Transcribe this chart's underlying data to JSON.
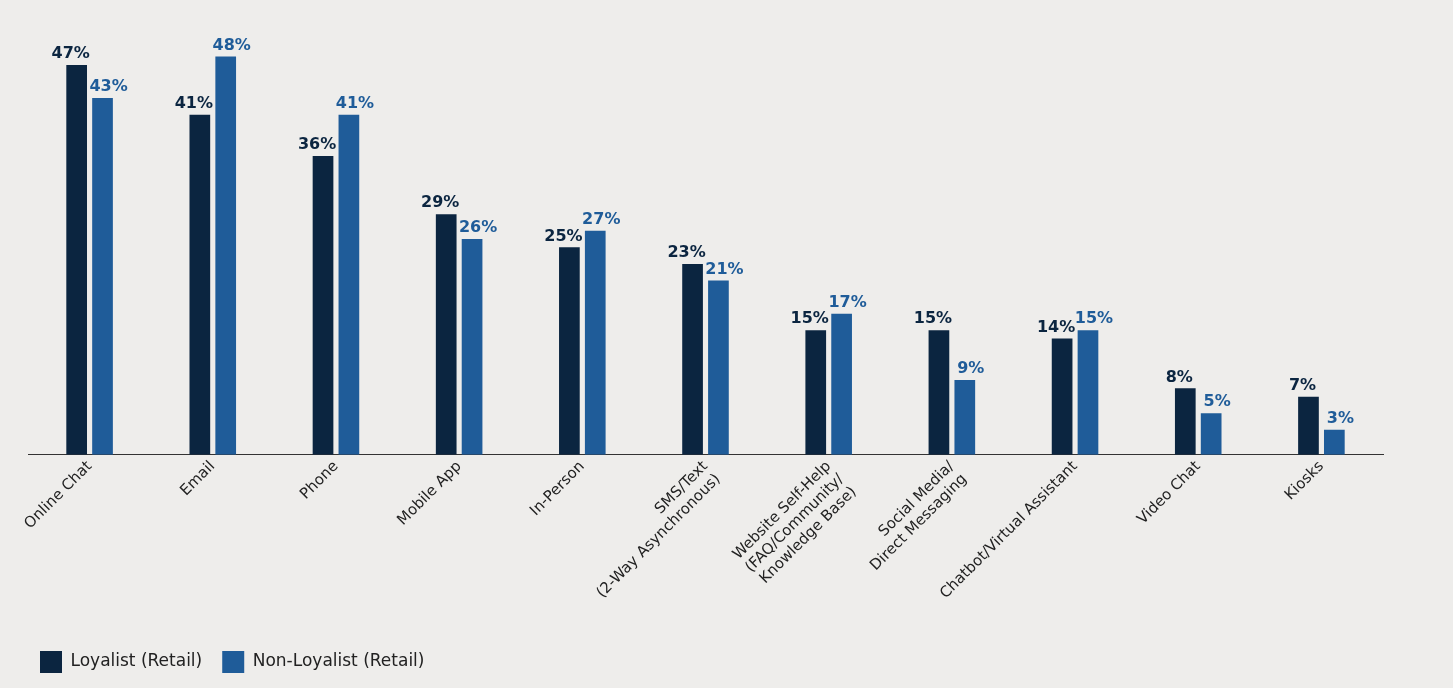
{
  "chart_data": {
    "type": "bar",
    "categories": [
      "Online Chat",
      "Email",
      "Phone",
      "Mobile App",
      "In-Person",
      "SMS/Text\n(2-Way Asynchronous)",
      "Website Self-Help\n(FAQ/Community/\nKnowledge Base)",
      "Social Media/\nDirect Messaging",
      "Chatbot/Virtual Assistant",
      "Video Chat",
      "Kiosks"
    ],
    "series": [
      {
        "name": "Loyalist (Retail)",
        "color": "#0b2540",
        "values": [
          47,
          41,
          36,
          29,
          25,
          23,
          15,
          15,
          14,
          8,
          7
        ],
        "value_labels": [
          "47%",
          "41%",
          "36%",
          "29%",
          "25%",
          "23%",
          "15%",
          "15%",
          "14%",
          "8%",
          "7%"
        ]
      },
      {
        "name": "Non-Loyalist (Retail)",
        "color": "#1f5c99",
        "values": [
          43,
          48,
          41,
          26,
          27,
          21,
          17,
          9,
          15,
          5,
          3
        ],
        "value_labels": [
          "43%",
          "48%",
          "41%",
          "26%",
          "27%",
          "21%",
          "17%",
          "9%",
          "15%",
          "5%",
          "3%"
        ]
      }
    ],
    "legend": "bottom left"
  }
}
